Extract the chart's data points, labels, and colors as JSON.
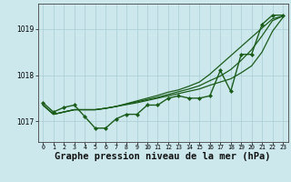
{
  "background_color": "#cce8ed",
  "grid_color": "#aaccd4",
  "line_color": "#1a5c1a",
  "xlabel": "Graphe pression niveau de la mer (hPa)",
  "xlabel_fontsize": 7.5,
  "yticks": [
    1017,
    1018,
    1019
  ],
  "xticks": [
    0,
    1,
    2,
    3,
    4,
    5,
    6,
    7,
    8,
    9,
    10,
    11,
    12,
    13,
    14,
    15,
    16,
    17,
    18,
    19,
    20,
    21,
    22,
    23
  ],
  "xlim": [
    -0.5,
    23.5
  ],
  "ylim": [
    1016.55,
    1019.55
  ],
  "series": [
    {
      "x": [
        0,
        1,
        2,
        3,
        4,
        5,
        6,
        7,
        8,
        9,
        10,
        11,
        12,
        13,
        14,
        15,
        16,
        17,
        18,
        19,
        20,
        21,
        22,
        23
      ],
      "y": [
        1017.4,
        1017.2,
        1017.3,
        1017.35,
        1017.1,
        1016.85,
        1016.85,
        1017.05,
        1017.15,
        1017.15,
        1017.35,
        1017.35,
        1017.5,
        1017.55,
        1017.5,
        1017.5,
        1017.55,
        1018.1,
        1017.65,
        1018.45,
        1018.45,
        1019.1,
        1019.3,
        1019.3
      ],
      "marker": "D",
      "markersize": 2.0,
      "linewidth": 1.0
    },
    {
      "x": [
        0,
        1,
        2,
        3,
        4,
        5,
        6,
        7,
        8,
        9,
        10,
        11,
        12,
        13,
        14,
        15,
        16,
        17,
        18,
        19,
        20,
        21,
        22,
        23
      ],
      "y": [
        1017.35,
        1017.15,
        1017.2,
        1017.25,
        1017.25,
        1017.25,
        1017.28,
        1017.32,
        1017.36,
        1017.4,
        1017.45,
        1017.5,
        1017.55,
        1017.6,
        1017.65,
        1017.7,
        1017.78,
        1017.85,
        1017.92,
        1018.05,
        1018.2,
        1018.5,
        1018.95,
        1019.25
      ],
      "marker": null,
      "markersize": 0,
      "linewidth": 0.9
    },
    {
      "x": [
        0,
        1,
        2,
        3,
        4,
        5,
        6,
        7,
        8,
        9,
        10,
        11,
        12,
        13,
        14,
        15,
        16,
        17,
        18,
        19,
        20,
        21,
        22,
        23
      ],
      "y": [
        1017.35,
        1017.15,
        1017.2,
        1017.25,
        1017.25,
        1017.25,
        1017.28,
        1017.32,
        1017.37,
        1017.42,
        1017.47,
        1017.52,
        1017.58,
        1017.64,
        1017.7,
        1017.77,
        1017.88,
        1017.98,
        1018.12,
        1018.32,
        1018.55,
        1018.85,
        1019.18,
        1019.28
      ],
      "marker": null,
      "markersize": 0,
      "linewidth": 0.9
    },
    {
      "x": [
        0,
        1,
        2,
        3,
        4,
        5,
        6,
        7,
        8,
        9,
        10,
        11,
        12,
        13,
        14,
        15,
        16,
        17,
        18,
        19,
        20,
        21,
        22,
        23
      ],
      "y": [
        1017.35,
        1017.15,
        1017.2,
        1017.25,
        1017.25,
        1017.25,
        1017.28,
        1017.32,
        1017.38,
        1017.44,
        1017.5,
        1017.56,
        1017.63,
        1017.68,
        1017.76,
        1017.85,
        1018.02,
        1018.22,
        1018.42,
        1018.62,
        1018.82,
        1019.02,
        1019.22,
        1019.28
      ],
      "marker": null,
      "markersize": 0,
      "linewidth": 0.9
    }
  ]
}
